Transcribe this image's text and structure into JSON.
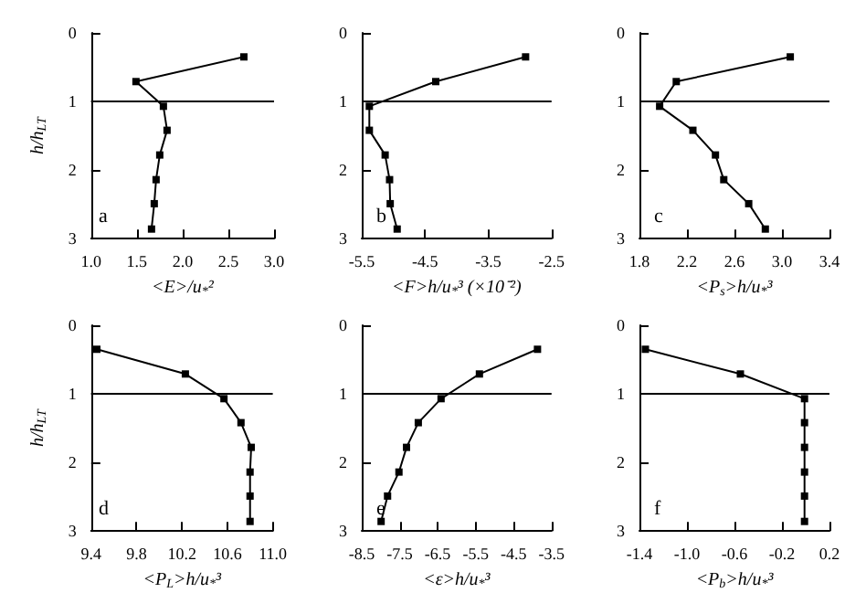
{
  "chart_data": [
    {
      "type": "line",
      "xlabel": "<E>/u$_{*}$²",
      "ylabel": "h/h$_{LT}$",
      "x": [
        2.67,
        1.49,
        1.79,
        1.83,
        1.75,
        1.71,
        1.69,
        1.66
      ],
      "values": [
        0.35,
        0.71,
        1.07,
        1.42,
        1.78,
        2.14,
        2.49,
        2.86
      ],
      "color": "#000000",
      "marker": "square",
      "xlim": [
        1,
        3
      ],
      "xticks": [
        {
          "value": 1,
          "label": "1.0"
        },
        1.5,
        {
          "value": 2,
          "label": "2.0"
        },
        2.5,
        {
          "value": 3,
          "label": "3.0"
        }
      ],
      "ylim": [
        3,
        0
      ],
      "yticks": [
        0,
        1,
        2,
        3
      ],
      "ref_lines": [
        {
          "axis": "y",
          "value": 1
        }
      ],
      "annotations": [
        "a"
      ]
    },
    {
      "type": "line",
      "xlabel": "<F>h/u$_{*}$³ (×10⁻²)",
      "x": [
        -2.91,
        -4.33,
        -5.38,
        -5.38,
        -5.13,
        -5.06,
        -5.05,
        -4.94
      ],
      "values": [
        0.35,
        0.71,
        1.07,
        1.42,
        1.78,
        2.14,
        2.49,
        2.86
      ],
      "color": "#000000",
      "marker": "square",
      "xlim": [
        -5.5,
        -2.5
      ],
      "xticks": [
        -5.5,
        -4.5,
        -3.5,
        -2.5
      ],
      "ylim": [
        3,
        0
      ],
      "yticks": [
        0,
        1,
        2,
        3
      ],
      "ref_lines": [
        {
          "axis": "y",
          "value": 1
        }
      ],
      "annotations": [
        "b"
      ]
    },
    {
      "type": "line",
      "xlabel": "<P$_{s}$>h/u$_{*}$³",
      "x": [
        3.07,
        2.11,
        1.97,
        2.25,
        2.44,
        2.51,
        2.72,
        2.86
      ],
      "values": [
        0.35,
        0.71,
        1.07,
        1.42,
        1.78,
        2.14,
        2.49,
        2.86
      ],
      "color": "#000000",
      "marker": "square",
      "xlim": [
        1.8,
        3.4
      ],
      "xticks": [
        1.8,
        2.2,
        2.6,
        {
          "value": 3,
          "label": "3.0"
        },
        3.4
      ],
      "ylim": [
        3,
        0
      ],
      "yticks": [
        0,
        1,
        2,
        3
      ],
      "ref_lines": [
        {
          "axis": "y",
          "value": 1
        }
      ],
      "annotations": [
        "c"
      ]
    },
    {
      "type": "line",
      "xlabel": "<P$_{L}$>h/u$_{*}$³",
      "ylabel": "h/h$_{LT}$",
      "x": [
        9.45,
        10.23,
        10.57,
        10.72,
        10.81,
        10.8,
        10.8,
        10.8
      ],
      "values": [
        0.35,
        0.71,
        1.07,
        1.42,
        1.78,
        2.14,
        2.49,
        2.86
      ],
      "color": "#000000",
      "marker": "square",
      "xlim": [
        9.4,
        11
      ],
      "xticks": [
        9.4,
        9.8,
        10.2,
        10.6,
        {
          "value": 11,
          "label": "11.0"
        }
      ],
      "ylim": [
        3,
        0
      ],
      "yticks": [
        0,
        1,
        2,
        3
      ],
      "ref_lines": [
        {
          "axis": "y",
          "value": 1
        }
      ],
      "annotations": [
        "d"
      ]
    },
    {
      "type": "line",
      "xlabel": "<ε>h/u$_{*}$³",
      "x": [
        -3.87,
        -5.4,
        -6.41,
        -7.01,
        -7.32,
        -7.52,
        -7.82,
        -7.99
      ],
      "values": [
        0.35,
        0.71,
        1.07,
        1.42,
        1.78,
        2.14,
        2.49,
        2.86
      ],
      "color": "#000000",
      "marker": "square",
      "xlim": [
        -8.5,
        -3.5
      ],
      "xticks": [
        -8.5,
        -7.5,
        -6.5,
        -5.5,
        -4.5,
        -3.5
      ],
      "ylim": [
        3,
        0
      ],
      "yticks": [
        0,
        1,
        2,
        3
      ],
      "ref_lines": [
        {
          "axis": "y",
          "value": 1
        }
      ],
      "annotations": [
        "e"
      ]
    },
    {
      "type": "line",
      "xlabel": "<P$_{b}$>h/u$_{*}$³",
      "x": [
        -1.35,
        -0.55,
        -0.01,
        -0.01,
        -0.01,
        -0.01,
        -0.01,
        -0.01
      ],
      "values": [
        0.35,
        0.71,
        1.07,
        1.42,
        1.78,
        2.14,
        2.49,
        2.86
      ],
      "color": "#000000",
      "marker": "square",
      "xlim": [
        -1.4,
        0.2
      ],
      "xticks": [
        -1.4,
        {
          "value": -1,
          "label": "-1.0"
        },
        -0.6,
        -0.2,
        0.2
      ],
      "ylim": [
        3,
        0
      ],
      "yticks": [
        0,
        1,
        2,
        3
      ],
      "ref_lines": [
        {
          "axis": "y",
          "value": 1
        }
      ],
      "annotations": [
        "f"
      ]
    }
  ]
}
